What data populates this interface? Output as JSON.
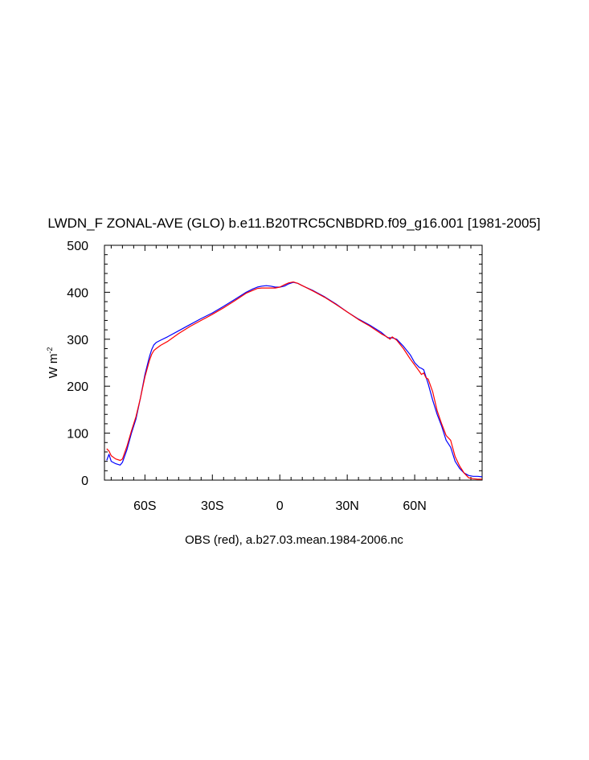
{
  "chart_data": {
    "type": "line",
    "title": "LWDN_F ZONAL-AVE (GLO) b.e11.B20TRC5CNBDRD.f09_g16.001 [1981-2005]",
    "ylabel_base": "W m",
    "ylabel_sup": "-2",
    "subtitle": "OBS (red), a.b27.03.mean.1984-2006.nc",
    "xlim": [
      -78,
      90
    ],
    "ylim": [
      0,
      500
    ],
    "xticks": [
      {
        "value": -60,
        "label": "60S"
      },
      {
        "value": -30,
        "label": "30S"
      },
      {
        "value": 0,
        "label": "0"
      },
      {
        "value": 30,
        "label": "30N"
      },
      {
        "value": 60,
        "label": "60N"
      }
    ],
    "yticks": [
      {
        "value": 0,
        "label": "0"
      },
      {
        "value": 100,
        "label": "100"
      },
      {
        "value": 200,
        "label": "200"
      },
      {
        "value": 300,
        "label": "300"
      },
      {
        "value": 400,
        "label": "400"
      },
      {
        "value": 500,
        "label": "500"
      }
    ],
    "grid": false,
    "series": [
      {
        "color": "#0000ff",
        "x": [
          -77,
          -76,
          -75,
          -73,
          -71,
          -70,
          -68,
          -66,
          -64,
          -62,
          -60,
          -58,
          -57,
          -56,
          -55,
          -53,
          -50,
          -45,
          -40,
          -35,
          -30,
          -25,
          -20,
          -15,
          -12,
          -10,
          -8,
          -6,
          -4,
          -2,
          0,
          2,
          4,
          6,
          8,
          10,
          15,
          20,
          25,
          30,
          35,
          40,
          45,
          48,
          50,
          52,
          55,
          58,
          60,
          62,
          63,
          64,
          66,
          68,
          70,
          72,
          74,
          76,
          78,
          80,
          82,
          84,
          86,
          88,
          90
        ],
        "y": [
          42,
          55,
          40,
          35,
          32,
          38,
          65,
          100,
          130,
          175,
          225,
          263,
          278,
          288,
          293,
          298,
          305,
          318,
          331,
          344,
          356,
          370,
          385,
          400,
          407,
          411,
          413,
          414,
          413,
          411,
          411,
          413,
          418,
          421,
          419,
          414,
          403,
          390,
          375,
          358,
          343,
          330,
          315,
          303,
          303,
          300,
          285,
          267,
          250,
          240,
          238,
          235,
          205,
          170,
          140,
          115,
          85,
          70,
          40,
          25,
          15,
          10,
          8,
          8,
          7
        ]
      },
      {
        "color": "#ff0000",
        "x": [
          -77,
          -76,
          -75,
          -73,
          -71,
          -70,
          -68,
          -66,
          -64,
          -62,
          -60,
          -58,
          -57,
          -56,
          -55,
          -53,
          -50,
          -45,
          -40,
          -35,
          -30,
          -25,
          -20,
          -15,
          -12,
          -10,
          -8,
          -6,
          -4,
          -2,
          0,
          2,
          4,
          6,
          8,
          10,
          15,
          20,
          25,
          30,
          35,
          40,
          45,
          48,
          49,
          50,
          52,
          55,
          58,
          60,
          62,
          63,
          64,
          65,
          66,
          68,
          70,
          72,
          74,
          76,
          78,
          80,
          82,
          84,
          86,
          88,
          90
        ],
        "y": [
          67,
          62,
          52,
          45,
          42,
          45,
          72,
          105,
          135,
          175,
          220,
          255,
          268,
          276,
          280,
          287,
          295,
          312,
          327,
          340,
          353,
          367,
          382,
          398,
          404,
          408,
          409,
          409,
          409,
          409,
          411,
          416,
          420,
          422,
          419,
          414,
          402,
          389,
          374,
          358,
          342,
          328,
          312,
          304,
          300,
          305,
          298,
          280,
          258,
          245,
          232,
          225,
          228,
          218,
          215,
          188,
          148,
          120,
          95,
          85,
          50,
          30,
          15,
          5,
          3,
          2,
          2
        ]
      }
    ]
  }
}
